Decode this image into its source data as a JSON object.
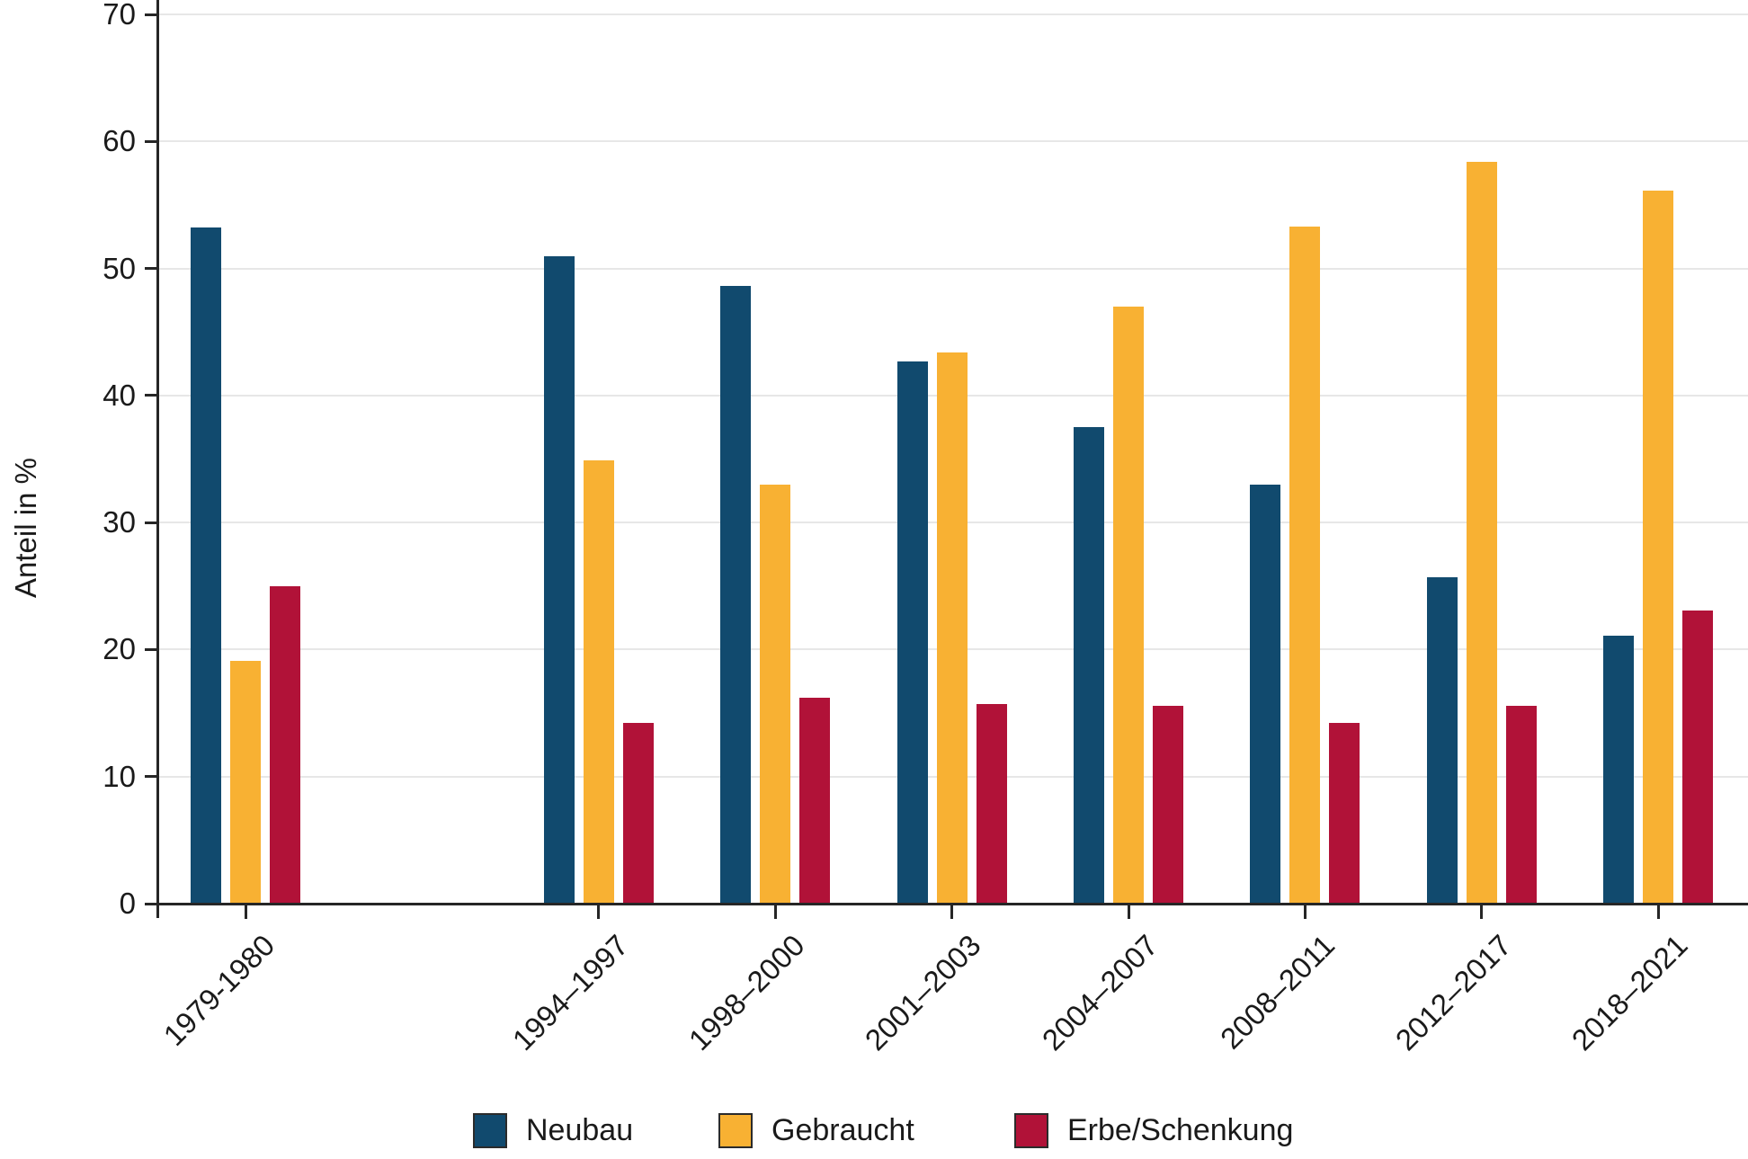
{
  "chart_data": {
    "type": "bar",
    "title": "",
    "ylabel": "Anteil in %",
    "xlabel": "",
    "ylim": [
      0,
      71.2
    ],
    "y_ticks": [
      0,
      10,
      20,
      30,
      40,
      50,
      60,
      70
    ],
    "grid": true,
    "legend_position": "bottom",
    "categories": [
      "1979-1980",
      "1994–1997",
      "1998–2000",
      "2001–2003",
      "2004–2007",
      "2008–2011",
      "2012–2017",
      "2018–2021"
    ],
    "x_slots": [
      0,
      2,
      3,
      4,
      5,
      6,
      7,
      8
    ],
    "n_slots": 9,
    "series": [
      {
        "name": "Neubau",
        "color": "#114a6e",
        "values": [
          53.2,
          51.0,
          48.6,
          42.7,
          37.5,
          33.0,
          25.7,
          21.1
        ]
      },
      {
        "name": "Gebraucht",
        "color": "#f8b133",
        "values": [
          19.1,
          34.9,
          33.0,
          43.4,
          47.0,
          53.3,
          58.4,
          56.1
        ]
      },
      {
        "name": "Erbe/Schenkung",
        "color": "#b11238",
        "values": [
          25.0,
          14.2,
          16.2,
          15.7,
          15.6,
          14.2,
          15.6,
          23.1
        ]
      }
    ]
  },
  "legend": {
    "items": [
      {
        "label": "Neubau",
        "color": "#114a6e"
      },
      {
        "label": "Gebraucht",
        "color": "#f8b133"
      },
      {
        "label": "Erbe/Schenkung",
        "color": "#b11238"
      }
    ]
  },
  "colors": {
    "axis": "#262626",
    "grid": "#e7e7e7",
    "text": "#1a1a1a"
  }
}
